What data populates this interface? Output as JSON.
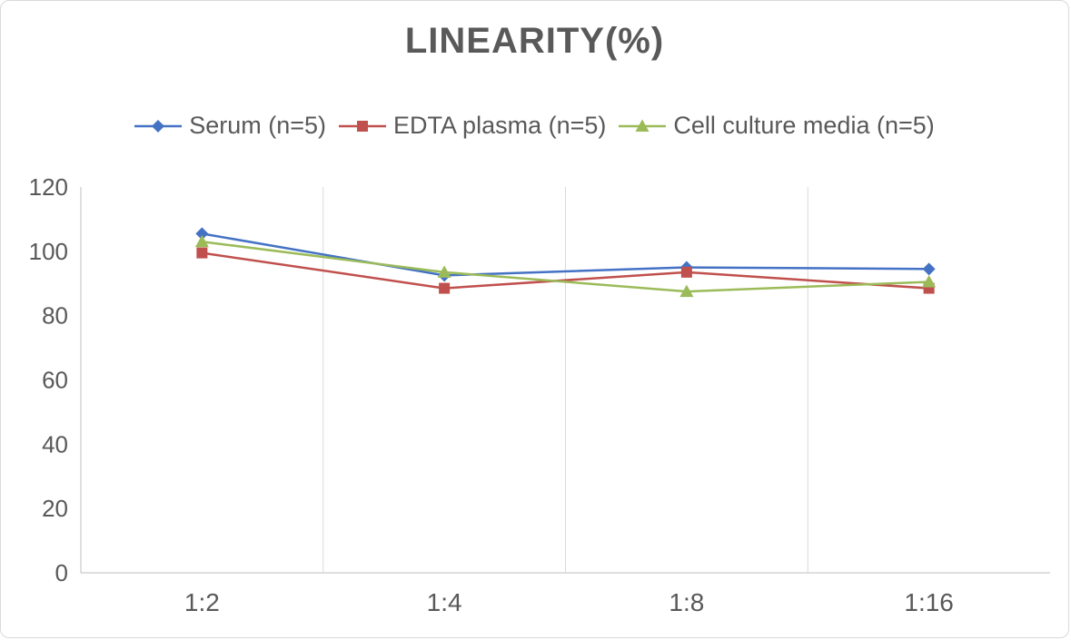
{
  "chart_data": {
    "type": "line",
    "title": "LINEARITY(%)",
    "categories": [
      "1:2",
      "1:4",
      "1:8",
      "1:16"
    ],
    "series": [
      {
        "name": "Serum (n=5)",
        "color": "#4472C4",
        "marker": "diamond",
        "values": [
          105.5,
          92.5,
          95,
          94.5
        ]
      },
      {
        "name": "EDTA plasma (n=5)",
        "color": "#C0504D",
        "marker": "square",
        "values": [
          99.5,
          88.5,
          93.5,
          88.5
        ]
      },
      {
        "name": "Cell culture media (n=5)",
        "color": "#9BBB59",
        "marker": "triangle",
        "values": [
          103,
          93.5,
          87.5,
          90.5
        ]
      }
    ],
    "ylim": [
      0,
      120
    ],
    "yticks": [
      0,
      20,
      40,
      60,
      80,
      100,
      120
    ],
    "xlabel": "",
    "ylabel": "",
    "grid": "vertical-between-categories",
    "legend_position": "top",
    "axis_color": "#bfbfbf",
    "gridline_color": "#d9d9d9",
    "tick_label_color": "#595959"
  }
}
